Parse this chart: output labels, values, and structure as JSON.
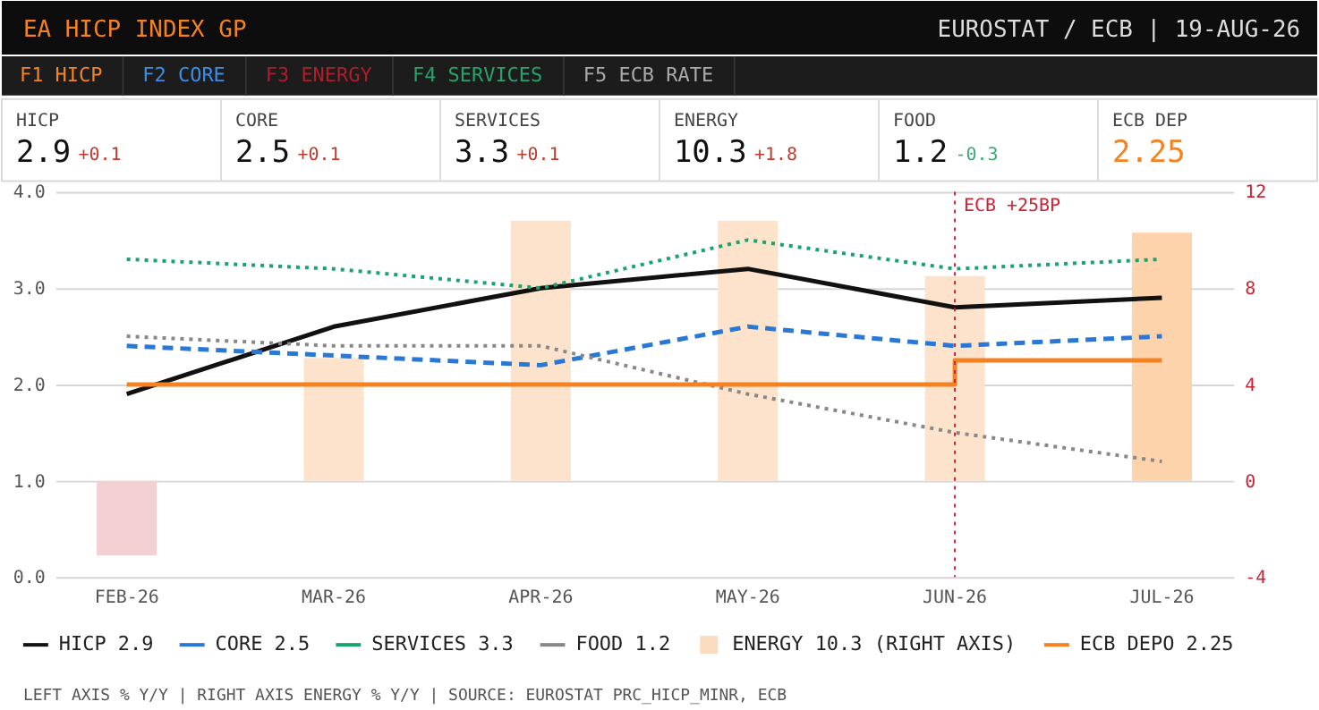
{
  "chart_data": {
    "type": "line",
    "title": "EA HICP INDEX GP",
    "annotations": [
      "EUROSTAT / ECB | 19-AUG-26",
      "F1 HICP",
      "F2 CORE",
      "F3 ENERGY",
      "F4 SERVICES",
      "F5 ECB RATE",
      "HICP",
      "2.9",
      "+0.1",
      "CORE",
      "2.5",
      "+0.1",
      "SERVICES",
      "3.3",
      "+0.1",
      "ENERGY",
      "10.3",
      "+1.8",
      "FOOD",
      "1.2",
      "-0.3",
      "ECB DEP",
      "2.25",
      "LEFT AXIS % Y/Y | RIGHT AXIS ENERGY % Y/Y | SOURCE: EUROSTAT PRC_HICP_MINR, ECB"
    ],
    "categories": [
      "FEB-26",
      "MAR-26",
      "APR-26",
      "MAY-26",
      "JUN-26",
      "JUL-26"
    ],
    "series": [
      {
        "name": "HICP 2.9",
        "type": "line",
        "color": "#111111",
        "line_style": "solid",
        "values": [
          1.9,
          2.6,
          3.0,
          3.2,
          2.8,
          2.9
        ]
      },
      {
        "name": "CORE 2.5",
        "type": "line",
        "color": "#2a78d6",
        "line_style": "dashed",
        "values": [
          2.4,
          2.3,
          2.2,
          2.6,
          2.4,
          2.5
        ]
      },
      {
        "name": "SERVICES 3.3",
        "type": "line",
        "color": "#1aa36f",
        "line_style": "dotted",
        "values": [
          3.3,
          3.2,
          3.0,
          3.5,
          3.2,
          3.3
        ]
      },
      {
        "name": "FOOD 1.2",
        "type": "line",
        "color": "#888888",
        "line_style": "dotted",
        "marker": "none",
        "values": [
          2.5,
          2.4,
          2.4,
          1.9,
          1.5,
          1.2
        ]
      },
      {
        "name": "ENERGY 10.3 (RIGHT AXIS)",
        "type": "bar",
        "axis": "y2",
        "color": "#fcdcbe",
        "colors": [
          "#f2d0d4",
          "#fde3cc",
          "#fde3cc",
          "#fde3cc",
          "#fde3cc",
          "#fdd3ac"
        ],
        "values": [
          -3.1,
          5.1,
          10.8,
          10.8,
          8.5,
          10.3
        ]
      },
      {
        "name": "ECB DEPO 2.25",
        "type": "step",
        "color": "#f58220",
        "line_style": "solid",
        "values": [
          2.0,
          2.0,
          2.0,
          2.0,
          2.25,
          2.25
        ]
      }
    ],
    "ylim": [
      0,
      4
    ],
    "yticks": [
      {
        "value": 0,
        "label": "0.0"
      },
      {
        "value": 1,
        "label": "1.0"
      },
      {
        "value": 2,
        "label": "2.0"
      },
      {
        "value": 3,
        "label": "3.0"
      },
      {
        "value": 4,
        "label": "4.0"
      }
    ],
    "y2lim": [
      -4,
      12
    ],
    "y2ticks": [
      -4,
      0,
      4,
      8,
      12
    ],
    "ref_lines": [
      {
        "axis": "x",
        "value": "JUN-26",
        "label": "ECB +25BP",
        "color": "#cc2233",
        "line_style": "dotted"
      }
    ],
    "grid": "y",
    "legend": "bottom"
  }
}
